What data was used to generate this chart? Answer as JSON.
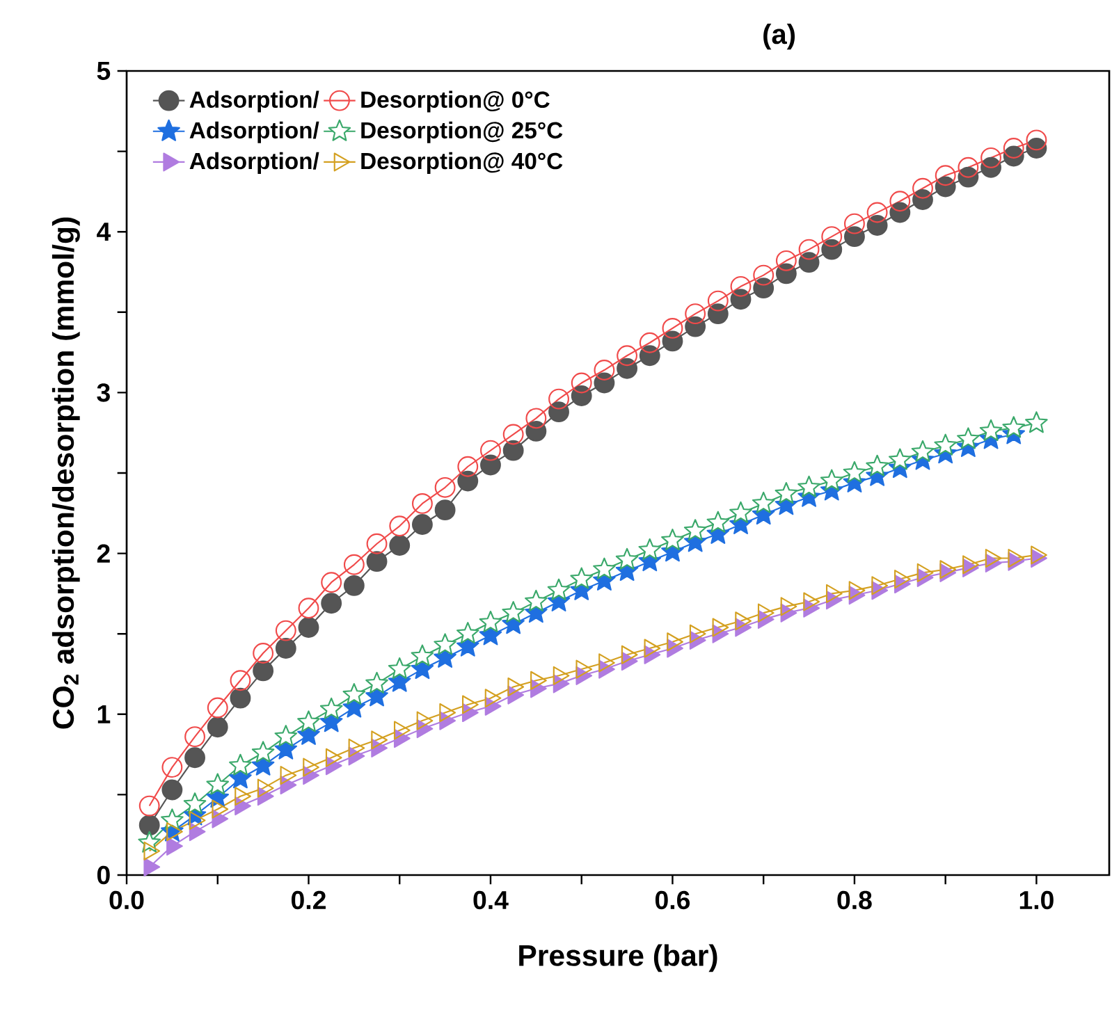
{
  "chart_data": {
    "type": "line",
    "title": "(a)",
    "xlabel": "Pressure (bar)",
    "ylabel": "CO$_{2}$ adsorption/desorption (mmol/g)",
    "xlim": [
      0,
      1.08
    ],
    "ylim": [
      0,
      5
    ],
    "xticks": [
      {
        "value": 0,
        "label": "0.0"
      },
      {
        "value": 0.1,
        "label": null
      },
      0.2,
      {
        "value": 0.3,
        "label": null
      },
      0.4,
      {
        "value": 0.5,
        "label": null
      },
      0.6,
      {
        "value": 0.7,
        "label": null
      },
      0.8,
      {
        "value": 0.9,
        "label": null
      },
      {
        "value": 1.0,
        "label": "1.0"
      }
    ],
    "yticks": [
      0,
      {
        "value": 0.5,
        "label": null
      },
      1,
      {
        "value": 1.5,
        "label": null
      },
      2,
      {
        "value": 2.5,
        "label": null
      },
      3,
      {
        "value": 3.5,
        "label": null
      },
      4,
      {
        "value": 4.5,
        "label": null
      },
      5
    ],
    "legend": "top left",
    "grid": false,
    "line_style": "solid",
    "x": [
      0.025,
      0.05,
      0.075,
      0.1,
      0.125,
      0.15,
      0.175,
      0.2,
      0.225,
      0.25,
      0.275,
      0.3,
      0.325,
      0.35,
      0.375,
      0.4,
      0.425,
      0.45,
      0.475,
      0.5,
      0.525,
      0.55,
      0.575,
      0.6,
      0.625,
      0.65,
      0.675,
      0.7,
      0.725,
      0.75,
      0.775,
      0.8,
      0.825,
      0.85,
      0.875,
      0.9,
      0.925,
      0.95,
      0.975,
      1.0
    ],
    "series": [
      {
        "name": "Adsorption/",
        "color": "#555555",
        "marker": "circle",
        "values": [
          0.31,
          0.53,
          0.73,
          0.92,
          1.1,
          1.27,
          1.41,
          1.54,
          1.69,
          1.8,
          1.95,
          2.05,
          2.18,
          2.27,
          2.45,
          2.55,
          2.64,
          2.76,
          2.88,
          2.98,
          3.06,
          3.15,
          3.23,
          3.32,
          3.41,
          3.49,
          3.58,
          3.65,
          3.74,
          3.81,
          3.89,
          3.97,
          4.04,
          4.12,
          4.2,
          4.28,
          4.34,
          4.4,
          4.47,
          4.52
        ]
      },
      {
        "name": "Desorption@ 0°C",
        "color": "#f04a4a",
        "marker": "circle",
        "values": [
          0.43,
          0.67,
          0.86,
          1.04,
          1.21,
          1.38,
          1.52,
          1.66,
          1.82,
          1.93,
          2.06,
          2.17,
          2.31,
          2.41,
          2.54,
          2.64,
          2.74,
          2.84,
          2.96,
          3.06,
          3.14,
          3.23,
          3.31,
          3.4,
          3.49,
          3.57,
          3.66,
          3.73,
          3.82,
          3.89,
          3.97,
          4.05,
          4.12,
          4.19,
          4.27,
          4.35,
          4.4,
          4.46,
          4.52,
          4.57
        ]
      },
      {
        "name": "Adsorption/",
        "color": "#1f6fe0",
        "marker": "star",
        "values": [
          null,
          0.27,
          0.37,
          0.48,
          0.6,
          0.68,
          0.78,
          0.87,
          0.95,
          1.04,
          1.11,
          1.2,
          1.28,
          1.35,
          1.42,
          1.49,
          1.56,
          1.63,
          1.7,
          1.77,
          1.83,
          1.89,
          1.95,
          2.01,
          2.07,
          2.12,
          2.18,
          2.24,
          2.3,
          2.35,
          2.39,
          2.44,
          2.48,
          2.53,
          2.58,
          2.62,
          2.66,
          2.71,
          2.74,
          null
        ]
      },
      {
        "name": "Desorption@ 25°C",
        "color": "#3aa86a",
        "marker": "star",
        "values": [
          0.2,
          0.34,
          0.44,
          0.56,
          0.68,
          0.76,
          0.86,
          0.95,
          1.03,
          1.12,
          1.19,
          1.28,
          1.36,
          1.43,
          1.5,
          1.57,
          1.63,
          1.7,
          1.77,
          1.84,
          1.9,
          1.96,
          2.02,
          2.08,
          2.14,
          2.19,
          2.25,
          2.31,
          2.37,
          2.41,
          2.45,
          2.5,
          2.54,
          2.58,
          2.63,
          2.67,
          2.71,
          2.76,
          2.78,
          2.81
        ]
      },
      {
        "name": "Adsorption/",
        "color": "#b07ce0",
        "marker": "triangle",
        "values": [
          0.05,
          0.18,
          0.27,
          0.35,
          0.43,
          0.49,
          0.56,
          0.62,
          0.68,
          0.74,
          0.79,
          0.85,
          0.91,
          0.96,
          1.01,
          1.05,
          1.12,
          1.16,
          1.19,
          1.24,
          1.28,
          1.33,
          1.37,
          1.41,
          1.46,
          1.5,
          1.54,
          1.59,
          1.63,
          1.66,
          1.71,
          1.74,
          1.77,
          1.81,
          1.85,
          1.88,
          1.91,
          1.94,
          1.95,
          1.97
        ]
      },
      {
        "name": "Desorption@ 40°C",
        "color": "#d4a020",
        "marker": "triangle",
        "values": [
          0.15,
          0.27,
          0.34,
          0.41,
          0.49,
          0.54,
          0.62,
          0.67,
          0.73,
          0.79,
          0.84,
          0.9,
          0.96,
          1.01,
          1.06,
          1.1,
          1.17,
          1.21,
          1.24,
          1.28,
          1.32,
          1.37,
          1.41,
          1.45,
          1.5,
          1.54,
          1.58,
          1.63,
          1.67,
          1.7,
          1.75,
          1.77,
          1.8,
          1.84,
          1.88,
          1.9,
          1.93,
          1.97,
          1.97,
          1.99
        ]
      }
    ]
  }
}
